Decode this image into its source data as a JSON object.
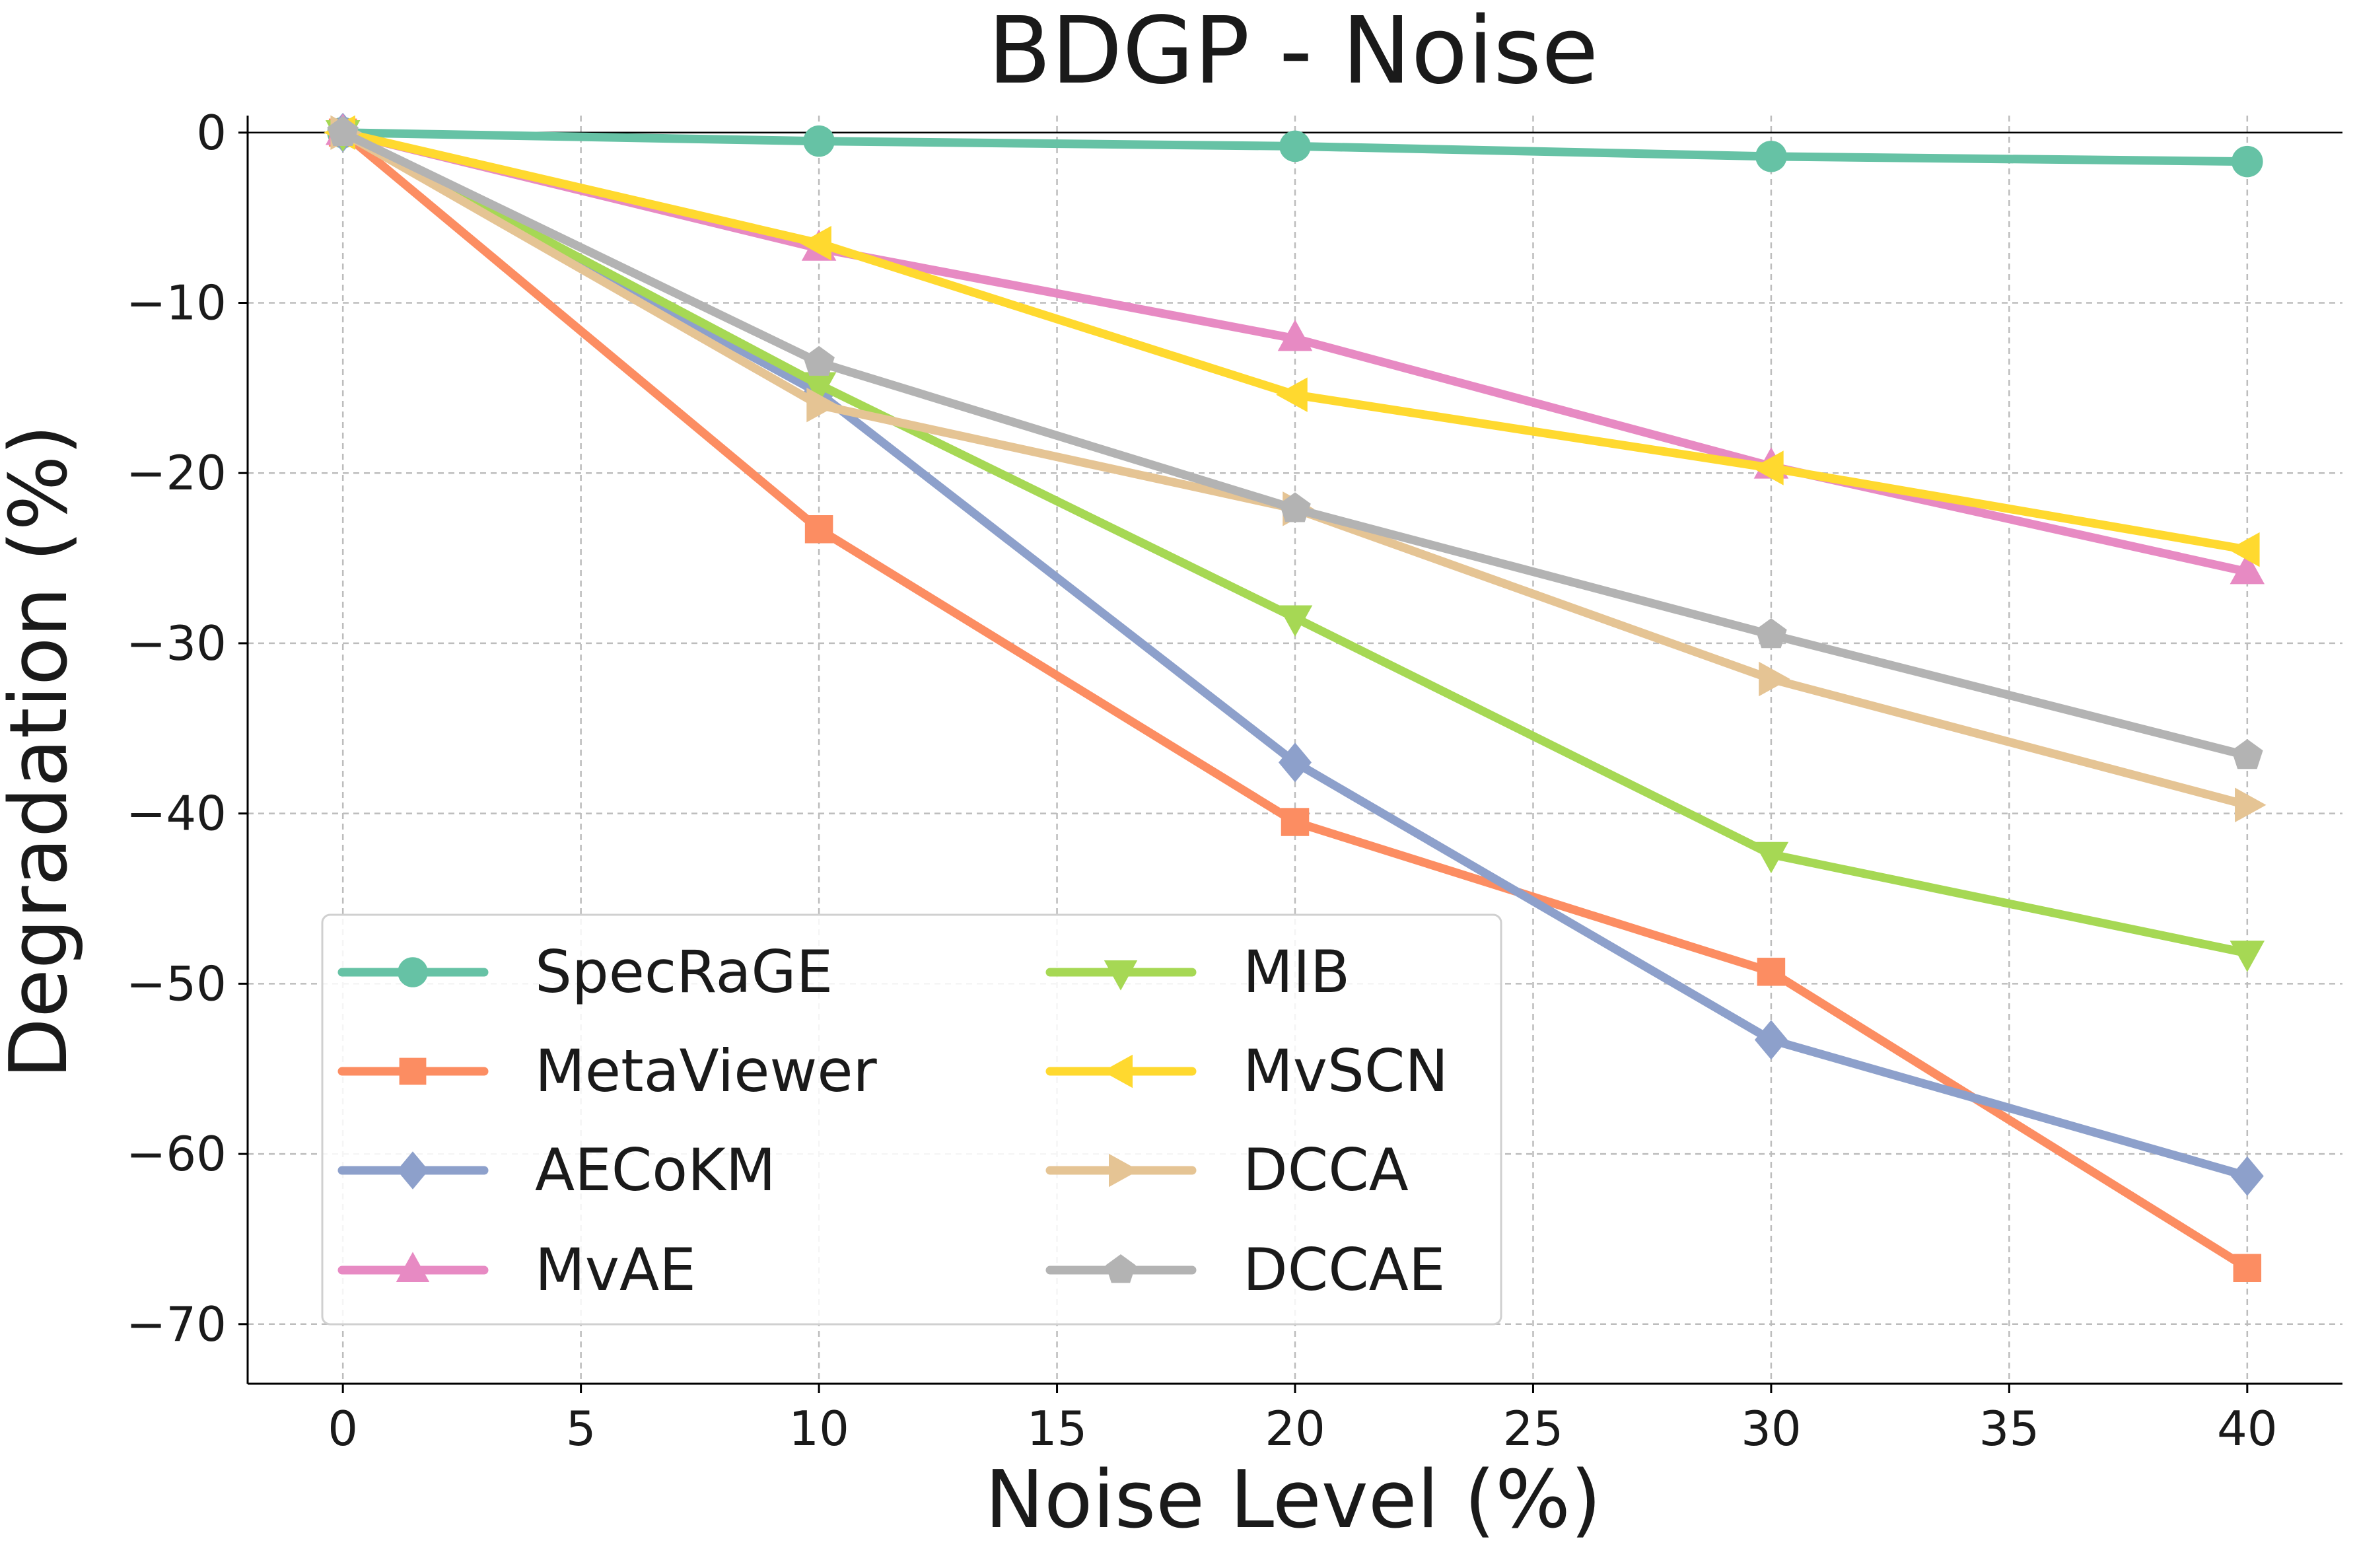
{
  "chart_data": {
    "type": "line",
    "title": "BDGP - Noise",
    "xlabel": "Noise Level (%)",
    "ylabel": "Degradation (%)",
    "x": [
      0,
      10,
      20,
      30,
      40
    ],
    "xlim": [
      -2,
      42
    ],
    "ylim": [
      -73.5,
      1
    ],
    "xticks": [
      0,
      5,
      10,
      15,
      20,
      25,
      30,
      35,
      40
    ],
    "yticks": [
      0,
      -10,
      -20,
      -30,
      -40,
      -50,
      -60,
      -70
    ],
    "ytick_labels": [
      "0",
      "−10",
      "−20",
      "−30",
      "−40",
      "−50",
      "−60",
      "−70"
    ],
    "grid": true,
    "legend_position": "lower-left",
    "legend_columns": 2,
    "series": [
      {
        "name": "SpecRaGE",
        "color": "#66c2a5",
        "marker": "circle",
        "values": [
          0,
          -0.5,
          -0.8,
          -1.4,
          -1.7
        ]
      },
      {
        "name": "MetaViewer",
        "color": "#fc8d62",
        "marker": "square",
        "values": [
          0,
          -23.3,
          -40.5,
          -49.3,
          -66.7
        ]
      },
      {
        "name": "AECoKM",
        "color": "#8da0cb",
        "marker": "diamond",
        "values": [
          0,
          -15.3,
          -37.0,
          -53.3,
          -61.3
        ]
      },
      {
        "name": "MvAE",
        "color": "#e78ac3",
        "marker": "triangle-up",
        "values": [
          0,
          -6.8,
          -12.1,
          -19.6,
          -25.8
        ]
      },
      {
        "name": "MIB",
        "color": "#a6d854",
        "marker": "triangle-down",
        "values": [
          0,
          -14.8,
          -28.5,
          -42.4,
          -48.2
        ]
      },
      {
        "name": "MvSCN",
        "color": "#ffd92f",
        "marker": "triangle-left",
        "values": [
          0,
          -6.5,
          -15.4,
          -19.7,
          -24.5
        ]
      },
      {
        "name": "DCCA",
        "color": "#e5c494",
        "marker": "triangle-right",
        "values": [
          0,
          -16.0,
          -22.1,
          -32.1,
          -39.5
        ]
      },
      {
        "name": "DCCAE",
        "color": "#b3b3b3",
        "marker": "pentagon",
        "values": [
          0,
          -13.5,
          -22.1,
          -29.5,
          -36.6
        ]
      }
    ]
  }
}
